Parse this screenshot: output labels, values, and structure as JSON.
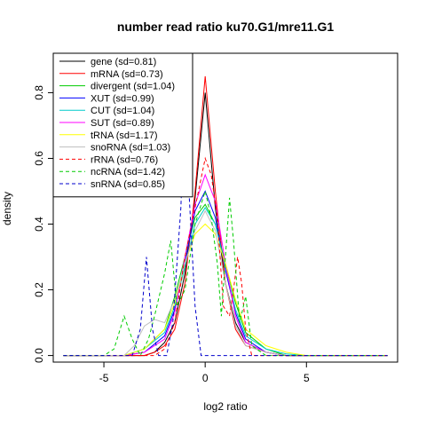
{
  "chart_data": {
    "type": "line",
    "title": "number read ratio ku70.G1/mre11.G1",
    "xlabel": "log2 ratio",
    "ylabel": "density",
    "xlim": [
      -7.5,
      9.5
    ],
    "ylim": [
      -0.02,
      0.92
    ],
    "xticks": [
      -5,
      0,
      5
    ],
    "yticks": [
      0.0,
      0.2,
      0.4,
      0.6,
      0.8
    ],
    "ytick_labels": [
      "0.0",
      "0.2",
      "0.4",
      "0.6",
      "0.8"
    ],
    "legend_position": "top-left",
    "series": [
      {
        "name": "gene (sd=0.81)",
        "color": "#000000",
        "dash": "solid",
        "points": [
          [
            -7,
            0
          ],
          [
            -3,
            0
          ],
          [
            -2.5,
            0.01
          ],
          [
            -2,
            0.04
          ],
          [
            -1.5,
            0.1
          ],
          [
            -1,
            0.25
          ],
          [
            -0.5,
            0.48
          ],
          [
            0,
            0.8
          ],
          [
            0.5,
            0.45
          ],
          [
            1,
            0.22
          ],
          [
            1.5,
            0.1
          ],
          [
            2,
            0.04
          ],
          [
            3,
            0.01
          ],
          [
            4,
            0
          ],
          [
            9,
            0
          ]
        ]
      },
      {
        "name": "mRNA (sd=0.73)",
        "color": "#ff0000",
        "dash": "solid",
        "points": [
          [
            -7,
            0
          ],
          [
            -3,
            0
          ],
          [
            -2.5,
            0.01
          ],
          [
            -2,
            0.03
          ],
          [
            -1.5,
            0.08
          ],
          [
            -1,
            0.22
          ],
          [
            -0.5,
            0.5
          ],
          [
            0,
            0.85
          ],
          [
            0.5,
            0.5
          ],
          [
            1,
            0.22
          ],
          [
            1.5,
            0.08
          ],
          [
            2,
            0.03
          ],
          [
            3,
            0.01
          ],
          [
            4,
            0
          ],
          [
            9,
            0
          ]
        ]
      },
      {
        "name": "divergent (sd=1.04)",
        "color": "#00cc00",
        "dash": "solid",
        "points": [
          [
            -7,
            0
          ],
          [
            -4,
            0
          ],
          [
            -3,
            0.02
          ],
          [
            -2,
            0.08
          ],
          [
            -1.5,
            0.18
          ],
          [
            -1,
            0.3
          ],
          [
            -0.5,
            0.42
          ],
          [
            0,
            0.46
          ],
          [
            0.5,
            0.4
          ],
          [
            1,
            0.28
          ],
          [
            1.5,
            0.16
          ],
          [
            2,
            0.07
          ],
          [
            3,
            0.02
          ],
          [
            4,
            0
          ],
          [
            9,
            0
          ]
        ]
      },
      {
        "name": "XUT (sd=0.99)",
        "color": "#0000ff",
        "dash": "solid",
        "points": [
          [
            -7,
            0
          ],
          [
            -4,
            0
          ],
          [
            -3,
            0.01
          ],
          [
            -2,
            0.06
          ],
          [
            -1.5,
            0.14
          ],
          [
            -1,
            0.28
          ],
          [
            -0.5,
            0.44
          ],
          [
            0,
            0.5
          ],
          [
            0.5,
            0.42
          ],
          [
            1,
            0.26
          ],
          [
            1.5,
            0.13
          ],
          [
            2,
            0.05
          ],
          [
            3,
            0.01
          ],
          [
            4,
            0
          ],
          [
            9,
            0
          ]
        ]
      },
      {
        "name": "CUT (sd=1.04)",
        "color": "#00cccc",
        "dash": "solid",
        "points": [
          [
            -7,
            0
          ],
          [
            -4,
            0
          ],
          [
            -3,
            0.02
          ],
          [
            -2,
            0.07
          ],
          [
            -1.5,
            0.15
          ],
          [
            -1,
            0.27
          ],
          [
            -0.5,
            0.4
          ],
          [
            0,
            0.45
          ],
          [
            0.5,
            0.4
          ],
          [
            1,
            0.27
          ],
          [
            1.5,
            0.14
          ],
          [
            2,
            0.06
          ],
          [
            3,
            0.02
          ],
          [
            4,
            0.005
          ],
          [
            5,
            0
          ],
          [
            9,
            0
          ]
        ]
      },
      {
        "name": "SUT (sd=0.89)",
        "color": "#ff00ff",
        "dash": "solid",
        "points": [
          [
            -7,
            0
          ],
          [
            -4,
            0
          ],
          [
            -3,
            0.01
          ],
          [
            -2,
            0.05
          ],
          [
            -1.5,
            0.13
          ],
          [
            -1,
            0.3
          ],
          [
            -0.5,
            0.46
          ],
          [
            0,
            0.55
          ],
          [
            0.5,
            0.47
          ],
          [
            1,
            0.28
          ],
          [
            1.5,
            0.12
          ],
          [
            2,
            0.04
          ],
          [
            3,
            0.01
          ],
          [
            4,
            0
          ],
          [
            9,
            0
          ]
        ]
      },
      {
        "name": "tRNA (sd=1.17)",
        "color": "#ffff00",
        "dash": "solid",
        "points": [
          [
            -7,
            0
          ],
          [
            -4,
            0
          ],
          [
            -3,
            0.02
          ],
          [
            -2,
            0.08
          ],
          [
            -1.5,
            0.16
          ],
          [
            -1,
            0.28
          ],
          [
            -0.5,
            0.37
          ],
          [
            0,
            0.4
          ],
          [
            0.5,
            0.37
          ],
          [
            1,
            0.28
          ],
          [
            1.5,
            0.17
          ],
          [
            2,
            0.08
          ],
          [
            3,
            0.03
          ],
          [
            4,
            0.01
          ],
          [
            5,
            0
          ],
          [
            9,
            0
          ]
        ]
      },
      {
        "name": "snoRNA (sd=1.03)",
        "color": "#bebebe",
        "dash": "solid",
        "points": [
          [
            -7,
            0
          ],
          [
            -4,
            0
          ],
          [
            -3.5,
            0.03
          ],
          [
            -3,
            0.09
          ],
          [
            -2.5,
            0.11
          ],
          [
            -2,
            0.1
          ],
          [
            -1.5,
            0.17
          ],
          [
            -1,
            0.28
          ],
          [
            -0.5,
            0.38
          ],
          [
            0,
            0.44
          ],
          [
            0.5,
            0.38
          ],
          [
            1,
            0.22
          ],
          [
            1.5,
            0.09
          ],
          [
            2,
            0.03
          ],
          [
            3,
            0.01
          ],
          [
            4,
            0
          ],
          [
            9,
            0
          ]
        ]
      },
      {
        "name": "rRNA (sd=0.76)",
        "color": "#ff0000",
        "dash": "dashed",
        "points": [
          [
            -7,
            0
          ],
          [
            -2.5,
            0
          ],
          [
            -2,
            0.02
          ],
          [
            -1.5,
            0.1
          ],
          [
            -1,
            0.3
          ],
          [
            -0.5,
            0.45
          ],
          [
            0,
            0.6
          ],
          [
            0.3,
            0.55
          ],
          [
            0.6,
            0.42
          ],
          [
            0.9,
            0.15
          ],
          [
            1.2,
            0.12
          ],
          [
            1.4,
            0.2
          ],
          [
            1.6,
            0.3
          ],
          [
            1.8,
            0.22
          ],
          [
            2,
            0.08
          ],
          [
            2.3,
            0
          ],
          [
            9,
            0
          ]
        ]
      },
      {
        "name": "ncRNA (sd=1.42)",
        "color": "#00cc00",
        "dash": "dashed",
        "points": [
          [
            -7,
            0
          ],
          [
            -5,
            0
          ],
          [
            -4.5,
            0.02
          ],
          [
            -4,
            0.12
          ],
          [
            -3.6,
            0.05
          ],
          [
            -3.2,
            0
          ],
          [
            -2.8,
            0.05
          ],
          [
            -2.5,
            0.12
          ],
          [
            -2,
            0.25
          ],
          [
            -1.7,
            0.35
          ],
          [
            -1.4,
            0.15
          ],
          [
            -1,
            0.2
          ],
          [
            -0.5,
            0.4
          ],
          [
            0,
            0.5
          ],
          [
            0.3,
            0.42
          ],
          [
            0.6,
            0.28
          ],
          [
            0.8,
            0.12
          ],
          [
            1,
            0.3
          ],
          [
            1.2,
            0.48
          ],
          [
            1.4,
            0.35
          ],
          [
            1.7,
            0.1
          ],
          [
            2,
            0.18
          ],
          [
            2.3,
            0.03
          ],
          [
            3,
            0
          ],
          [
            9,
            0
          ]
        ]
      },
      {
        "name": "snRNA (sd=0.85)",
        "color": "#0000cc",
        "dash": "dashed",
        "points": [
          [
            -7,
            0
          ],
          [
            -3.6,
            0
          ],
          [
            -3.2,
            0.08
          ],
          [
            -2.9,
            0.3
          ],
          [
            -2.6,
            0.08
          ],
          [
            -2.3,
            0
          ],
          [
            -1.9,
            0
          ],
          [
            -1.6,
            0.1
          ],
          [
            -1.2,
            0.45
          ],
          [
            -1.0,
            0.8
          ],
          [
            -0.8,
            0.5
          ],
          [
            -0.5,
            0.15
          ],
          [
            -0.2,
            0
          ],
          [
            9,
            0
          ]
        ]
      }
    ]
  }
}
